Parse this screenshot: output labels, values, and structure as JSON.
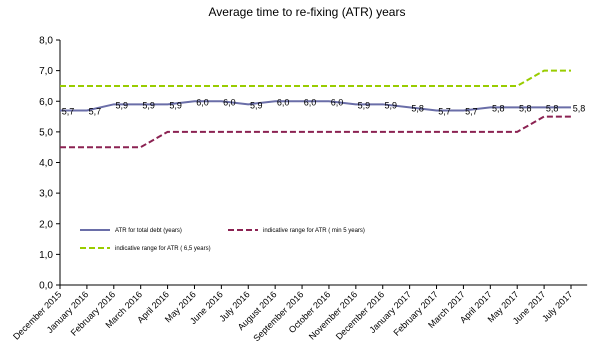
{
  "chart_data": {
    "type": "line",
    "title": "Average time to re-fixing (ATR) years",
    "categories": [
      "December 2015",
      "January 2016",
      "February 2016",
      "March 2016",
      "April 2016",
      "May 2016",
      "June 2016",
      "July 2016",
      "August 2016",
      "September 2016",
      "October 2016",
      "November 2016",
      "December 2016",
      "January 2017",
      "February 2017",
      "March 2017",
      "April 2017",
      "May 2017",
      "June 2017",
      "July 2017"
    ],
    "series": [
      {
        "name": "ATR for total debt (years)",
        "color": "#6a6ea8",
        "style": "solid",
        "values": [
          5.7,
          5.7,
          5.9,
          5.9,
          5.9,
          6.0,
          6.0,
          5.9,
          6.0,
          6.0,
          6.0,
          5.9,
          5.9,
          5.8,
          5.7,
          5.7,
          5.8,
          5.8,
          5.8,
          5.8
        ],
        "value_labels": [
          "5,7",
          "5,7",
          "5,9",
          "5,9",
          "5,9",
          "6,0",
          "6,0",
          "5,9",
          "6,0",
          "6,0",
          "6,0",
          "5,9",
          "5,9",
          "5,8",
          "5,7",
          "5,7",
          "5,8",
          "5,8",
          "5,8",
          "5,8"
        ]
      },
      {
        "name": "indicative range for ATR ( min 5 years)",
        "color": "#8b2252",
        "style": "dashed",
        "values": [
          4.5,
          4.5,
          4.5,
          4.5,
          5.0,
          5.0,
          5.0,
          5.0,
          5.0,
          5.0,
          5.0,
          5.0,
          5.0,
          5.0,
          5.0,
          5.0,
          5.0,
          5.0,
          5.5,
          5.5
        ]
      },
      {
        "name": "indicative range for ATR ( 6,5 years)",
        "color": "#99cc00",
        "style": "dashed",
        "values": [
          6.5,
          6.5,
          6.5,
          6.5,
          6.5,
          6.5,
          6.5,
          6.5,
          6.5,
          6.5,
          6.5,
          6.5,
          6.5,
          6.5,
          6.5,
          6.5,
          6.5,
          6.5,
          7.0,
          7.0
        ]
      }
    ],
    "ylim": [
      0,
      8
    ],
    "yticks": [
      {
        "value": 0,
        "label": "0,0"
      },
      {
        "value": 1,
        "label": "1,0"
      },
      {
        "value": 2,
        "label": "2,0"
      },
      {
        "value": 3,
        "label": "3,0"
      },
      {
        "value": 4,
        "label": "4,0"
      },
      {
        "value": 5,
        "label": "5,0"
      },
      {
        "value": 6,
        "label": "6,0"
      },
      {
        "value": 7,
        "label": "7,0"
      },
      {
        "value": 8,
        "label": "8,0"
      }
    ],
    "grid": false
  }
}
